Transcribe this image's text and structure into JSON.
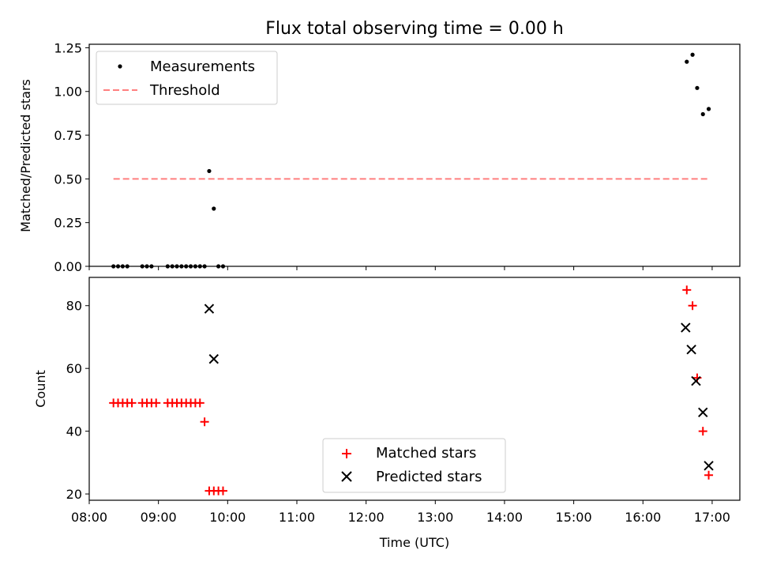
{
  "figure": {
    "title": "Flux total observing time = 0.00 h"
  },
  "chart_data": [
    {
      "type": "scatter",
      "ylabel": "Matched/Predicted stars",
      "xlabel": "",
      "xlim": [
        "08:00",
        "17:24"
      ],
      "ylim": [
        0,
        1.27
      ],
      "yticks": [
        "0.00",
        "0.25",
        "0.50",
        "0.75",
        "1.00",
        "1.25"
      ],
      "grid": false,
      "legend_position": "top-left",
      "series": [
        {
          "name": "Measurements",
          "marker": "dot",
          "color": "#000000",
          "x": [
            "08:21",
            "08:25",
            "08:29",
            "08:33",
            "08:46",
            "08:50",
            "08:54",
            "09:08",
            "09:12",
            "09:16",
            "09:20",
            "09:24",
            "09:28",
            "09:32",
            "09:36",
            "09:40",
            "09:44",
            "09:48",
            "09:52",
            "09:56",
            "16:38",
            "16:43",
            "16:47",
            "16:52",
            "16:57"
          ],
          "y": [
            0,
            0,
            0,
            0,
            0,
            0,
            0,
            0,
            0,
            0,
            0,
            0,
            0,
            0,
            0,
            0,
            0.545,
            0.33,
            0,
            0,
            1.17,
            1.21,
            1.02,
            0.87,
            0.9
          ]
        },
        {
          "name": "Threshold",
          "style": "dashed",
          "color": "#ff7f7f",
          "x": [
            "08:21",
            "16:58"
          ],
          "y": [
            0.5,
            0.5
          ]
        }
      ]
    },
    {
      "type": "scatter",
      "ylabel": "Count",
      "xlabel": "Time (UTC)",
      "xlim": [
        "08:00",
        "17:24"
      ],
      "ylim": [
        18,
        89
      ],
      "yticks": [
        "20",
        "40",
        "60",
        "80"
      ],
      "xticks": [
        "08:00",
        "09:00",
        "10:00",
        "11:00",
        "12:00",
        "13:00",
        "14:00",
        "15:00",
        "16:00",
        "17:00"
      ],
      "grid": false,
      "legend_position": "lower-center",
      "series": [
        {
          "name": "Matched stars",
          "marker": "plus",
          "color": "#ff0000",
          "x": [
            "08:21",
            "08:25",
            "08:29",
            "08:33",
            "08:37",
            "08:46",
            "08:50",
            "08:54",
            "08:58",
            "09:08",
            "09:12",
            "09:16",
            "09:20",
            "09:24",
            "09:28",
            "09:32",
            "09:36",
            "09:40",
            "09:44",
            "09:48",
            "09:52",
            "09:56",
            "16:38",
            "16:43",
            "16:47",
            "16:52",
            "16:57"
          ],
          "y": [
            49,
            49,
            49,
            49,
            49,
            49,
            49,
            49,
            49,
            49,
            49,
            49,
            49,
            49,
            49,
            49,
            49,
            43,
            21,
            21,
            21,
            21,
            85,
            80,
            57,
            40,
            26
          ]
        },
        {
          "name": "Predicted stars",
          "marker": "x",
          "color": "#000000",
          "x": [
            "09:44",
            "09:48",
            "16:37",
            "16:42",
            "16:46",
            "16:52",
            "16:57"
          ],
          "y": [
            79,
            63,
            73,
            66,
            56,
            46,
            29
          ]
        }
      ]
    }
  ]
}
